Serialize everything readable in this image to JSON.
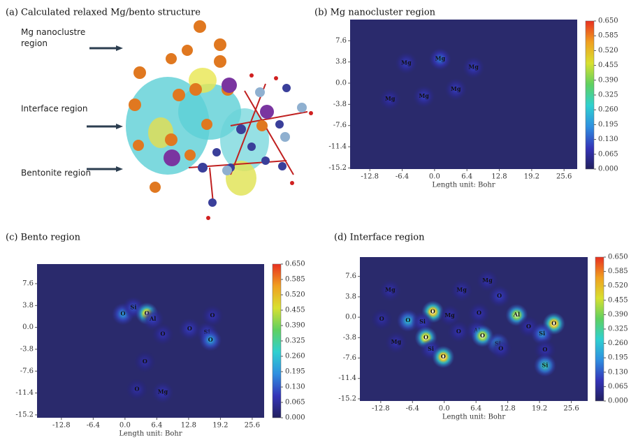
{
  "structure_panel": {
    "title": "(a) Calculated relaxed Mg/bento structure",
    "labels": [
      "Mg nanoclustre\nregion",
      "Interface region",
      "Bentonite region"
    ]
  },
  "chart_data": [
    {
      "type": "heatmap",
      "title": "(b) Mg nanocluster region",
      "x_label": "Length unit: Bohr",
      "xlim": [
        -16.7,
        28.2
      ],
      "ylim": [
        -15.4,
        11.4
      ],
      "xticks": [
        -12.8,
        -6.4,
        {
          "value": 0,
          "label": "0.0"
        },
        6.4,
        12.8,
        19.2,
        25.6
      ],
      "yticks": [
        7.6,
        3.8,
        {
          "value": 0,
          "label": "0.0"
        },
        -3.8,
        -7.6,
        -11.4,
        -15.2
      ],
      "colorbar": {
        "lim": [
          0,
          0.65
        ],
        "ticks": [
          {
            "value": 0,
            "label": "0.000"
          },
          {
            "value": 0.065,
            "label": "0.065"
          },
          {
            "value": 0.13,
            "label": "0.130"
          },
          {
            "value": 0.195,
            "label": "0.195"
          },
          {
            "value": 0.26,
            "label": "0.260"
          },
          {
            "value": 0.325,
            "label": "0.325"
          },
          {
            "value": 0.39,
            "label": "0.390"
          },
          {
            "value": 0.455,
            "label": "0.455"
          },
          {
            "value": 0.52,
            "label": "0.520"
          },
          {
            "value": 0.585,
            "label": "0.585"
          },
          {
            "value": 0.65,
            "label": "0.650"
          }
        ]
      },
      "colorscale": [
        "#22205e",
        "#3434b8",
        "#2f8fe0",
        "#2fd0d0",
        "#5fd060",
        "#d8e030",
        "#f0a020",
        "#e83020"
      ],
      "background": "#2a2a6c",
      "points": [
        {
          "label": "Mg",
          "x": -5.6,
          "y": 3.6,
          "value": 0.1
        },
        {
          "label": "Mg",
          "x": 1.1,
          "y": 4.3,
          "value": 0.16
        },
        {
          "label": "Mg",
          "x": 7.7,
          "y": 2.8,
          "value": 0.1
        },
        {
          "label": "Mg",
          "x": 4.2,
          "y": -1.1,
          "value": 0.1
        },
        {
          "label": "Mg",
          "x": -2.1,
          "y": -2.4,
          "value": 0.1
        },
        {
          "label": "Mg",
          "x": -8.8,
          "y": -2.9,
          "value": 0.08
        }
      ]
    },
    {
      "type": "heatmap",
      "title": "(c) Bento region",
      "x_label": "Length unit: Bohr",
      "xlim": [
        -17.7,
        28.0
      ],
      "ylim": [
        -15.7,
        11.0
      ],
      "xticks": [
        -12.8,
        -6.4,
        {
          "value": 0,
          "label": "0.0"
        },
        6.4,
        12.8,
        19.2,
        25.6
      ],
      "yticks": [
        7.6,
        3.8,
        {
          "value": 0,
          "label": "0.0"
        },
        -3.8,
        -7.6,
        -11.4,
        -15.2
      ],
      "colorbar": {
        "lim": [
          0,
          0.65
        ],
        "ticks": [
          {
            "value": 0,
            "label": "0.000"
          },
          {
            "value": 0.065,
            "label": "0.065"
          },
          {
            "value": 0.13,
            "label": "0.130"
          },
          {
            "value": 0.195,
            "label": "0.195"
          },
          {
            "value": 0.26,
            "label": "0.260"
          },
          {
            "value": 0.325,
            "label": "0.325"
          },
          {
            "value": 0.39,
            "label": "0.390"
          },
          {
            "value": 0.455,
            "label": "0.455"
          },
          {
            "value": 0.52,
            "label": "0.520"
          },
          {
            "value": 0.585,
            "label": "0.585"
          },
          {
            "value": 0.65,
            "label": "0.650"
          }
        ]
      },
      "colorscale": [
        "#22205e",
        "#3434b8",
        "#2f8fe0",
        "#2fd0d0",
        "#5fd060",
        "#d8e030",
        "#f0a020",
        "#e83020"
      ],
      "background": "#2a2a6c",
      "points": [
        {
          "label": "O",
          "x": -0.4,
          "y": 2.3,
          "value": 0.2
        },
        {
          "label": "Si",
          "x": 1.7,
          "y": 3.4,
          "value": 0.12
        },
        {
          "label": "O",
          "x": 4.4,
          "y": 2.4,
          "value": 0.45
        },
        {
          "label": "Al",
          "x": 5.6,
          "y": 1.4,
          "value": 0.1
        },
        {
          "label": "O",
          "x": 7.6,
          "y": -1.2,
          "value": 0.08
        },
        {
          "label": "O",
          "x": 13.0,
          "y": -0.3,
          "value": 0.1
        },
        {
          "label": "Si",
          "x": 16.5,
          "y": -0.9,
          "value": 0.1
        },
        {
          "label": "O",
          "x": 17.6,
          "y": 2.0,
          "value": 0.08
        },
        {
          "label": "O",
          "x": 17.2,
          "y": -2.2,
          "value": 0.22
        },
        {
          "label": "O",
          "x": 4.0,
          "y": -6.0,
          "value": 0.07
        },
        {
          "label": "O",
          "x": 2.4,
          "y": -10.8,
          "value": 0.07
        },
        {
          "label": "Mg",
          "x": 7.6,
          "y": -11.3,
          "value": 0.09
        }
      ]
    },
    {
      "type": "heatmap",
      "title": "(d) Interface region",
      "x_label": "Length unit: Bohr",
      "xlim": [
        -17.0,
        28.9
      ],
      "ylim": [
        -15.6,
        11.2
      ],
      "xticks": [
        -12.8,
        -6.4,
        {
          "value": 0,
          "label": "0.0"
        },
        6.4,
        12.8,
        19.2,
        25.6
      ],
      "yticks": [
        7.6,
        3.8,
        {
          "value": 0,
          "label": "0.0"
        },
        -3.8,
        -7.6,
        -11.4,
        -15.2
      ],
      "colorbar": {
        "lim": [
          0,
          0.65
        ],
        "ticks": [
          {
            "value": 0,
            "label": "0.000"
          },
          {
            "value": 0.065,
            "label": "0.065"
          },
          {
            "value": 0.13,
            "label": "0.130"
          },
          {
            "value": 0.195,
            "label": "0.195"
          },
          {
            "value": 0.26,
            "label": "0.260"
          },
          {
            "value": 0.325,
            "label": "0.325"
          },
          {
            "value": 0.39,
            "label": "0.390"
          },
          {
            "value": 0.455,
            "label": "0.455"
          },
          {
            "value": 0.52,
            "label": "0.520"
          },
          {
            "value": 0.585,
            "label": "0.585"
          },
          {
            "value": 0.65,
            "label": "0.650"
          }
        ]
      },
      "colorscale": [
        "#22205e",
        "#3434b8",
        "#2f8fe0",
        "#2fd0d0",
        "#5fd060",
        "#d8e030",
        "#f0a020",
        "#e83020"
      ],
      "background": "#2a2a6c",
      "points": [
        {
          "label": "Mg",
          "x": -10.9,
          "y": 5.0,
          "value": 0.08
        },
        {
          "label": "Mg",
          "x": 3.5,
          "y": 5.0,
          "value": 0.08
        },
        {
          "label": "Mg",
          "x": 8.7,
          "y": 6.8,
          "value": 0.08
        },
        {
          "label": "O",
          "x": 11.1,
          "y": 3.9,
          "value": 0.1
        },
        {
          "label": "O",
          "x": -2.3,
          "y": 1.0,
          "value": 0.5
        },
        {
          "label": "Mg",
          "x": 1.1,
          "y": 0.3,
          "value": 0.08
        },
        {
          "label": "O",
          "x": 7.0,
          "y": 0.7,
          "value": 0.08
        },
        {
          "label": "Al",
          "x": 14.6,
          "y": 0.4,
          "value": 0.4
        },
        {
          "label": "O",
          "x": 22.1,
          "y": -1.2,
          "value": 0.5
        },
        {
          "label": "O",
          "x": -12.6,
          "y": -0.4,
          "value": 0.07
        },
        {
          "label": "O",
          "x": -7.3,
          "y": -0.65,
          "value": 0.25
        },
        {
          "label": "Si",
          "x": -4.4,
          "y": -0.9,
          "value": 0.1
        },
        {
          "label": "O",
          "x": 2.9,
          "y": -2.7,
          "value": 0.08
        },
        {
          "label": "Al",
          "x": 6.6,
          "y": -2.5,
          "value": 0.1
        },
        {
          "label": "O",
          "x": 7.7,
          "y": -3.5,
          "value": 0.42
        },
        {
          "label": "O",
          "x": 17.0,
          "y": -1.8,
          "value": 0.08
        },
        {
          "label": "Si",
          "x": 19.7,
          "y": -3.1,
          "value": 0.2
        },
        {
          "label": "O",
          "x": -3.7,
          "y": -3.8,
          "value": 0.45
        },
        {
          "label": "Mg",
          "x": -9.7,
          "y": -4.7,
          "value": 0.08
        },
        {
          "label": "Si",
          "x": 10.8,
          "y": -5.0,
          "value": 0.25
        },
        {
          "label": "O",
          "x": 11.4,
          "y": -5.9,
          "value": 0.08
        },
        {
          "label": "Si",
          "x": -2.7,
          "y": -6.0,
          "value": 0.1
        },
        {
          "label": "O",
          "x": -0.2,
          "y": -7.4,
          "value": 0.5
        },
        {
          "label": "O",
          "x": 20.3,
          "y": -6.1,
          "value": 0.08
        },
        {
          "label": "Si",
          "x": 20.3,
          "y": -9.0,
          "value": 0.3
        }
      ]
    }
  ]
}
